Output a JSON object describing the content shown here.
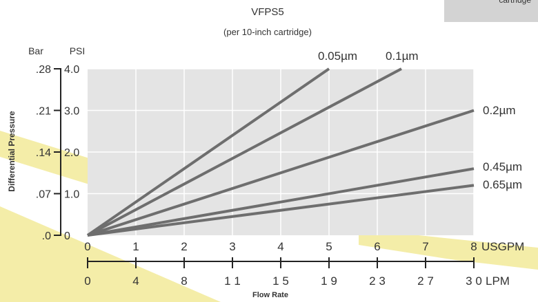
{
  "corner_label": "cartridge",
  "chart_data": {
    "type": "line",
    "title": "VFPS5",
    "subtitle": "(per 10-inch cartridge)",
    "xlabel": "Flow Rate",
    "ylabel": "Differential Pressure",
    "x_unit_primary": "USGPM",
    "x_unit_secondary": "LPM",
    "y_unit_primary": "PSI",
    "y_unit_secondary": "Bar",
    "xlim": [
      0,
      8
    ],
    "ylim": [
      0,
      4
    ],
    "grid": true,
    "x_ticks": [
      "0",
      "1",
      "2",
      "3",
      "4",
      "5",
      "6",
      "7",
      "8"
    ],
    "x_ticks_secondary": [
      "0",
      "4",
      "8",
      "1 1",
      "1 5",
      "1 9",
      "2 3",
      "2 7",
      "3 0"
    ],
    "y_ticks": [
      "0",
      "1.0",
      "2.0",
      "3.0",
      "4.0"
    ],
    "y_ticks_secondary": [
      ".0",
      ".07",
      ".14",
      ".21",
      ".28"
    ],
    "series": [
      {
        "name": "0.05µm",
        "x": [
          0,
          5
        ],
        "y": [
          0,
          4.0
        ]
      },
      {
        "name": "0.1µm",
        "x": [
          0,
          6.5
        ],
        "y": [
          0,
          4.0
        ]
      },
      {
        "name": "0.2µm",
        "x": [
          0,
          8
        ],
        "y": [
          0,
          3.0
        ]
      },
      {
        "name": "0.45µm",
        "x": [
          0,
          8
        ],
        "y": [
          0,
          1.6
        ]
      },
      {
        "name": "0.65µm",
        "x": [
          0,
          8
        ],
        "y": [
          0,
          1.2
        ]
      }
    ],
    "colors": {
      "line": "#6e6e6e",
      "plot_bg": "#e4e4e4",
      "grid": "#ffffff",
      "band": "#f4eda8"
    }
  }
}
